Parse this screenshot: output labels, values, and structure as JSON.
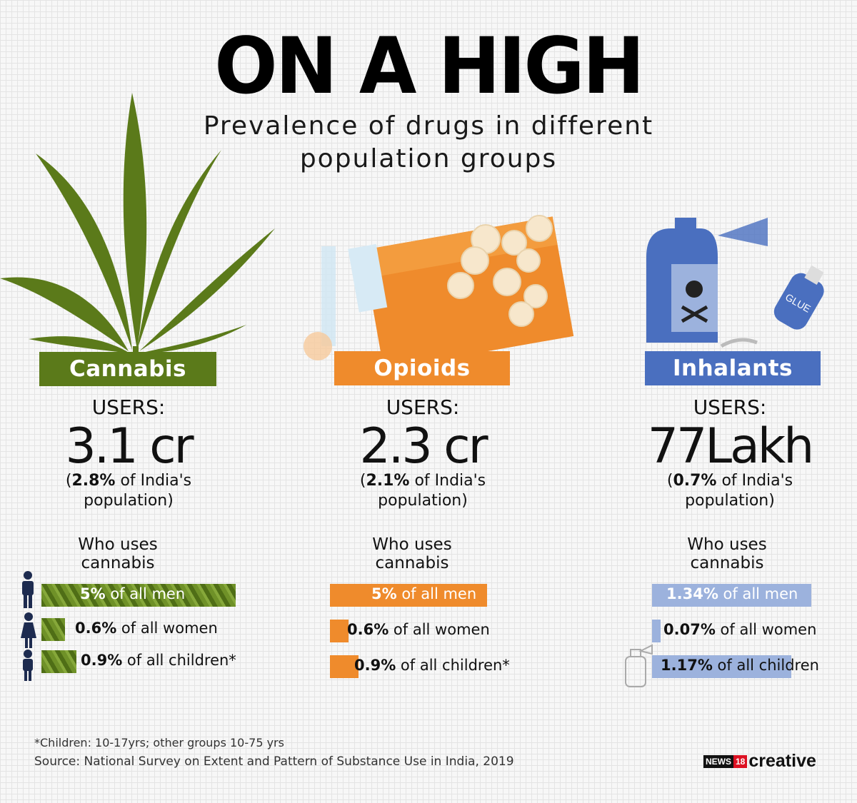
{
  "title": "ON A HIGH",
  "subtitle_line1": "Prevalence of drugs in different",
  "subtitle_line2": "population groups",
  "colors": {
    "cannabis": "#5b7a1a",
    "opioids": "#ef8b2c",
    "inhalants": "#4a6fbf",
    "inhalants_light": "#9cb2dd"
  },
  "chart_data": [
    {
      "type": "bar",
      "drug": "Cannabis",
      "users_label": "USERS:",
      "users_value": "3.1 cr",
      "share_bold": "2.8%",
      "share_rest": " of India's",
      "share_line2": "population)",
      "who_line1": "Who uses",
      "who_line2": "cannabis",
      "categories": [
        "men",
        "women",
        "children"
      ],
      "values": [
        5,
        0.6,
        0.9
      ],
      "labels_bold": [
        "5%",
        "0.6%",
        "0.9%"
      ],
      "labels_rest": [
        " of all men",
        " of all women",
        " of all children*"
      ]
    },
    {
      "type": "bar",
      "drug": "Opioids",
      "users_label": "USERS:",
      "users_value": "2.3 cr",
      "share_bold": "2.1%",
      "share_rest": " of India's",
      "share_line2": "population)",
      "who_line1": "Who uses",
      "who_line2": "cannabis",
      "categories": [
        "men",
        "women",
        "children"
      ],
      "values": [
        5,
        0.6,
        0.9
      ],
      "labels_bold": [
        "5%",
        "0.6%",
        "0.9%"
      ],
      "labels_rest": [
        " of all men",
        " of all women",
        " of all children*"
      ]
    },
    {
      "type": "bar",
      "drug": "Inhalants",
      "users_label": "USERS:",
      "users_value": "77Lakh",
      "share_bold": "0.7%",
      "share_rest": " of India's",
      "share_line2": "population)",
      "who_line1": "Who uses",
      "who_line2": "cannabis",
      "categories": [
        "men",
        "women",
        "children"
      ],
      "values": [
        1.34,
        0.07,
        1.17
      ],
      "labels_bold": [
        "1.34%",
        "0.07%",
        "1.17%"
      ],
      "labels_rest": [
        " of all men",
        " of all women",
        " of all children"
      ]
    }
  ],
  "footnote": "*Children: 10-17yrs; other groups 10-75 yrs",
  "source": "Source: National Survey on Extent and Pattern of Substance Use in India, 2019",
  "logo": {
    "brand": "NEWS",
    "num": "18",
    "word": "creative"
  }
}
